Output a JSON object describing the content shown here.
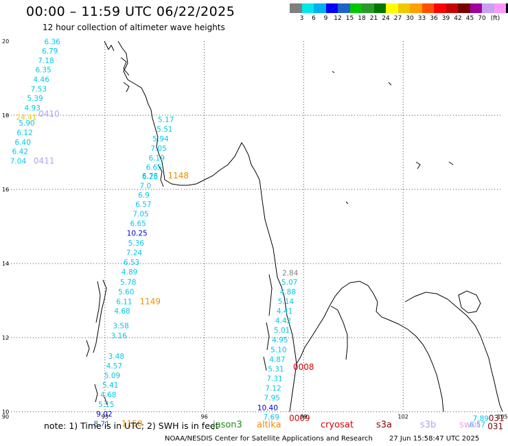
{
  "title": "00:00 – 11:59 UTC 06/22/2025",
  "subtitle": "12 hour collection of altimeter wave heights",
  "colorbar": {
    "unit": "(ft)",
    "colors": [
      "#7f7f7f",
      "#00e8e8",
      "#00b0f0",
      "#0000ff",
      "#1e64c8",
      "#00c800",
      "#2a9a2a",
      "#007800",
      "#ffff00",
      "#f0c800",
      "#ffa000",
      "#ff5000",
      "#ff0000",
      "#c80000",
      "#780000",
      "#a000a0",
      "#c8a0f0",
      "#ff96ff",
      "#000000"
    ],
    "labels": [
      "3",
      "6",
      "9",
      "12",
      "15",
      "18",
      "21",
      "24",
      "27",
      "30",
      "33",
      "36",
      "39",
      "42",
      "45",
      "70"
    ]
  },
  "axes": {
    "x_ticks": [
      "90",
      "93",
      "96",
      "99",
      "102",
      "105"
    ],
    "y_ticks": [
      "20",
      "18",
      "16",
      "14",
      "12",
      "10"
    ]
  },
  "wave_labels": [
    {
      "t": "6.36",
      "c": "#00c8e8",
      "lon": 91.17,
      "lat": 19.99
    },
    {
      "t": "6.79",
      "c": "#00c8e8",
      "lon": 91.1,
      "lat": 19.74
    },
    {
      "t": "7.18",
      "c": "#00c8e8",
      "lon": 90.98,
      "lat": 19.48
    },
    {
      "t": "6.35",
      "c": "#00c8e8",
      "lon": 90.9,
      "lat": 19.23
    },
    {
      "t": "4.46",
      "c": "#00c8e8",
      "lon": 90.84,
      "lat": 18.97
    },
    {
      "t": "7.53",
      "c": "#00c8e8",
      "lon": 90.76,
      "lat": 18.71
    },
    {
      "t": "5.39",
      "c": "#00c8e8",
      "lon": 90.65,
      "lat": 18.46
    },
    {
      "t": "4.93",
      "c": "#00c8e8",
      "lon": 90.57,
      "lat": 18.2
    },
    {
      "t": "24.41",
      "c": "#f0c800",
      "lon": 90.32,
      "lat": 17.95
    },
    {
      "t": "5.90",
      "c": "#00c8e8",
      "lon": 90.4,
      "lat": 17.8
    },
    {
      "t": "6.12",
      "c": "#00c8e8",
      "lon": 90.34,
      "lat": 17.54
    },
    {
      "t": "6.40",
      "c": "#00c8e8",
      "lon": 90.28,
      "lat": 17.28
    },
    {
      "t": "6.42",
      "c": "#00c8e8",
      "lon": 90.2,
      "lat": 17.03
    },
    {
      "t": "7.04",
      "c": "#00c8e8",
      "lon": 90.14,
      "lat": 16.77
    },
    {
      "t": "5.17",
      "c": "#00c8e8",
      "lon": 94.6,
      "lat": 17.89
    },
    {
      "t": "5.51",
      "c": "#00c8e8",
      "lon": 94.56,
      "lat": 17.63
    },
    {
      "t": "5.94",
      "c": "#00c8e8",
      "lon": 94.44,
      "lat": 17.37
    },
    {
      "t": "7.05",
      "c": "#00c8e8",
      "lon": 94.38,
      "lat": 17.11
    },
    {
      "t": "6.19",
      "c": "#00c8e8",
      "lon": 94.32,
      "lat": 16.85
    },
    {
      "t": "6.65",
      "c": "#00c8e8",
      "lon": 94.24,
      "lat": 16.6
    },
    {
      "t": "6.78",
      "c": "#00c8e8",
      "lon": 94.12,
      "lat": 16.37
    },
    {
      "t": "6.25",
      "c": "#00c8e8",
      "lon": 94.12,
      "lat": 16.35
    },
    {
      "t": "7.0",
      "c": "#00c8e8",
      "lon": 94.05,
      "lat": 16.1
    },
    {
      "t": "6.9",
      "c": "#00c8e8",
      "lon": 94.0,
      "lat": 15.85
    },
    {
      "t": "6.57",
      "c": "#00c8e8",
      "lon": 93.92,
      "lat": 15.6
    },
    {
      "t": "7.05",
      "c": "#00c8e8",
      "lon": 93.84,
      "lat": 15.34
    },
    {
      "t": "6.65",
      "c": "#00c8e8",
      "lon": 93.76,
      "lat": 15.08
    },
    {
      "t": "10.25",
      "c": "#0000c8",
      "lon": 93.66,
      "lat": 14.82
    },
    {
      "t": "5.36",
      "c": "#00c8e8",
      "lon": 93.7,
      "lat": 14.56
    },
    {
      "t": "7.24",
      "c": "#00c8e8",
      "lon": 93.64,
      "lat": 14.3
    },
    {
      "t": "6.53",
      "c": "#00c8e8",
      "lon": 93.56,
      "lat": 14.04
    },
    {
      "t": "4.89",
      "c": "#00c8e8",
      "lon": 93.5,
      "lat": 13.78
    },
    {
      "t": "5.78",
      "c": "#00c8e8",
      "lon": 93.46,
      "lat": 13.5
    },
    {
      "t": "5.60",
      "c": "#00c8e8",
      "lon": 93.4,
      "lat": 13.24
    },
    {
      "t": "6.11",
      "c": "#00c8e8",
      "lon": 93.34,
      "lat": 12.97
    },
    {
      "t": "4.68",
      "c": "#00c8e8",
      "lon": 93.28,
      "lat": 12.72
    },
    {
      "t": "3.58",
      "c": "#00c8e8",
      "lon": 93.24,
      "lat": 12.32
    },
    {
      "t": "3.16",
      "c": "#00c8e8",
      "lon": 93.18,
      "lat": 12.06
    },
    {
      "t": "3.48",
      "c": "#00c8e8",
      "lon": 93.1,
      "lat": 11.5
    },
    {
      "t": "4.57",
      "c": "#00c8e8",
      "lon": 93.04,
      "lat": 11.24
    },
    {
      "t": "5.09",
      "c": "#00c8e8",
      "lon": 92.98,
      "lat": 10.98
    },
    {
      "t": "5.41",
      "c": "#00c8e8",
      "lon": 92.92,
      "lat": 10.72
    },
    {
      "t": "4.68",
      "c": "#00c8e8",
      "lon": 92.86,
      "lat": 10.46
    },
    {
      "t": "5.15",
      "c": "#00c8e8",
      "lon": 92.8,
      "lat": 10.2
    },
    {
      "t": "9.02",
      "c": "#0000c8",
      "lon": 92.74,
      "lat": 9.94
    },
    {
      "t": "8.71",
      "c": "#1e64c8",
      "lon": 92.66,
      "lat": 9.68
    },
    {
      "t": "2.84",
      "c": "#7f7f7f",
      "lon": 98.35,
      "lat": 13.75
    },
    {
      "t": "5.07",
      "c": "#00c8e8",
      "lon": 98.33,
      "lat": 13.5
    },
    {
      "t": "4.88",
      "c": "#00c8e8",
      "lon": 98.28,
      "lat": 13.24
    },
    {
      "t": "5.14",
      "c": "#00c8e8",
      "lon": 98.22,
      "lat": 12.98
    },
    {
      "t": "4.41",
      "c": "#00c8e8",
      "lon": 98.18,
      "lat": 12.72
    },
    {
      "t": "4.42",
      "c": "#00c8e8",
      "lon": 98.14,
      "lat": 12.46
    },
    {
      "t": "5.01",
      "c": "#00c8e8",
      "lon": 98.1,
      "lat": 12.2
    },
    {
      "t": "4.95",
      "c": "#00c8e8",
      "lon": 98.04,
      "lat": 11.94
    },
    {
      "t": "5.10",
      "c": "#00c8e8",
      "lon": 98.0,
      "lat": 11.68
    },
    {
      "t": "4.87",
      "c": "#00c8e8",
      "lon": 97.96,
      "lat": 11.42
    },
    {
      "t": "5.31",
      "c": "#00c8e8",
      "lon": 97.92,
      "lat": 11.16
    },
    {
      "t": "7.31",
      "c": "#00c8e8",
      "lon": 97.88,
      "lat": 10.9
    },
    {
      "t": "7.12",
      "c": "#00c8e8",
      "lon": 97.84,
      "lat": 10.64
    },
    {
      "t": "7.95",
      "c": "#00c8e8",
      "lon": 97.8,
      "lat": 10.38
    },
    {
      "t": "10.40",
      "c": "#0000c8",
      "lon": 97.6,
      "lat": 10.11
    },
    {
      "t": "7.69",
      "c": "#00c8e8",
      "lon": 97.78,
      "lat": 9.86
    },
    {
      "t": "7.89",
      "c": "#00c8e8",
      "lon": 104.1,
      "lat": 9.82
    },
    {
      "t": "6.57",
      "c": "#00c8e8",
      "lon": 104.0,
      "lat": 9.66
    }
  ],
  "time_labels": [
    {
      "t": "0410",
      "c": "#b4a0f0",
      "lon": 91.0,
      "lat": 18.04
    },
    {
      "t": "0411",
      "c": "#b4a0f0",
      "lon": 90.85,
      "lat": 16.77
    },
    {
      "t": "1148",
      "c": "#f08c00",
      "lon": 94.9,
      "lat": 16.37
    },
    {
      "t": "1149",
      "c": "#f08c00",
      "lon": 94.05,
      "lat": 12.97
    },
    {
      "t": "1150",
      "c": "#f08c00",
      "lon": 93.5,
      "lat": 9.68
    },
    {
      "t": "0008",
      "c": "#d20000",
      "lon": 98.68,
      "lat": 11.2
    },
    {
      "t": "0009",
      "c": "#d20000",
      "lon": 98.56,
      "lat": 9.82
    },
    {
      "t": "031",
      "c": "#780000",
      "lon": 104.58,
      "lat": 9.82
    },
    {
      "t": "031",
      "c": "#780000",
      "lon": 104.55,
      "lat": 9.6
    }
  ],
  "note": "note: 1) Time is in UTC; 2) SWH is in feet",
  "missions": [
    {
      "t": "jason3",
      "c": "#1a8a1a"
    },
    {
      "t": "altika",
      "c": "#f08c00"
    },
    {
      "t": "cryosat",
      "c": "#d20000"
    },
    {
      "t": "s3a",
      "c": "#8c0000"
    },
    {
      "t": "s3b",
      "c": "#b4a0f0"
    },
    {
      "t": "swot",
      "c": "#f4a0e0"
    }
  ],
  "credit": "NOAA/NESDIS Center for Satellite Applications and Research",
  "timestamp": "27 Jun 15:58:47 UTC 2025"
}
